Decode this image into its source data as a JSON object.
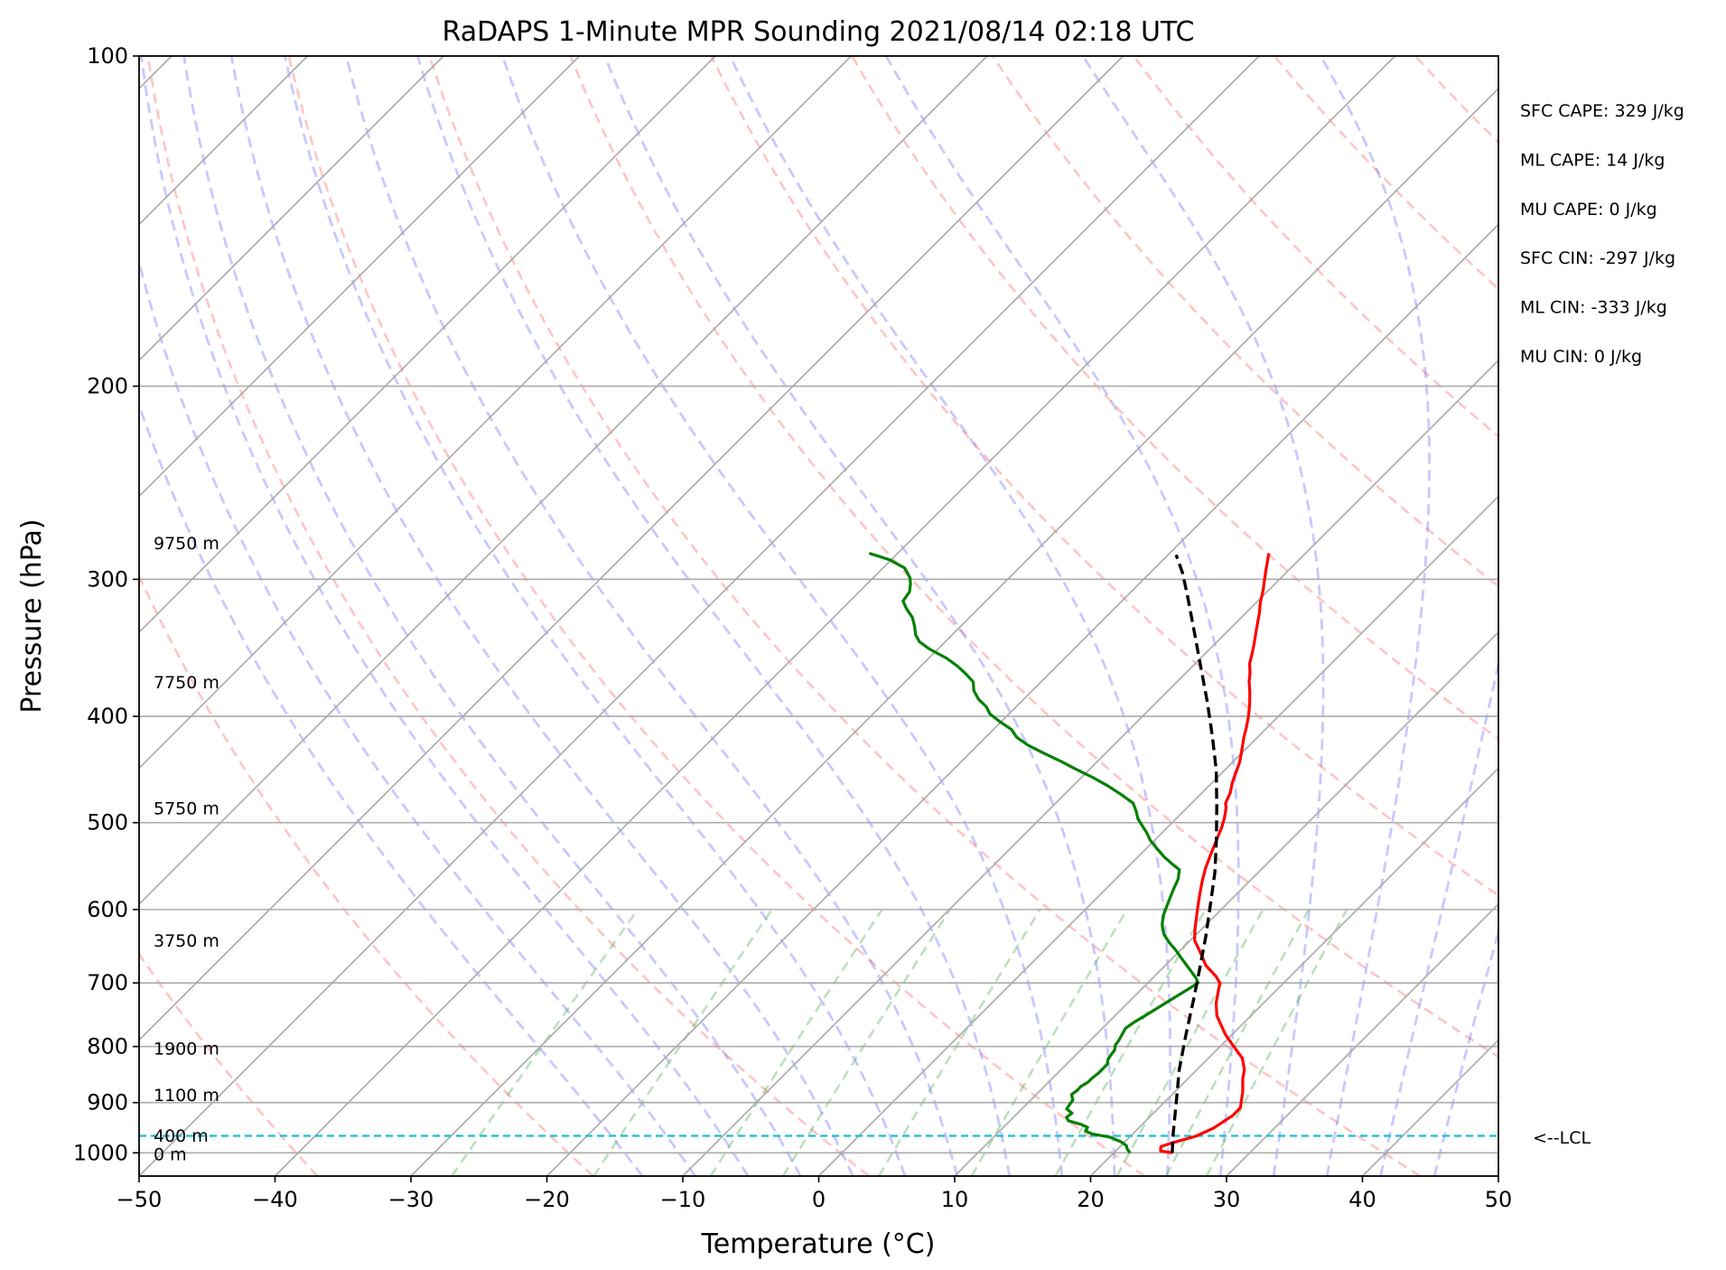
{
  "chart_data": {
    "type": "line",
    "title": "RaDAPS 1-Minute MPR Sounding 2021/08/14 02:18 UTC",
    "xlabel": "Temperature (°C)",
    "ylabel": "Pressure (hPa)",
    "xlim": [
      -50,
      50
    ],
    "ylim": [
      1050,
      100
    ],
    "y_scale": "log",
    "grid": true,
    "x_ticks": [
      "−50",
      "−40",
      "−30",
      "−20",
      "−10",
      "0",
      "10",
      "20",
      "30",
      "40",
      "50"
    ],
    "x_tick_values": [
      -50,
      -40,
      -30,
      -20,
      -10,
      0,
      10,
      20,
      30,
      40,
      50
    ],
    "y_ticks": [
      "100",
      "200",
      "300",
      "400",
      "500",
      "600",
      "700",
      "800",
      "900",
      "1000"
    ],
    "y_tick_values": [
      100,
      200,
      300,
      400,
      500,
      600,
      700,
      800,
      900,
      1000
    ],
    "height_labels": [
      {
        "text": "9750 m",
        "p": 278
      },
      {
        "text": "7750 m",
        "p": 372
      },
      {
        "text": "5750 m",
        "p": 485
      },
      {
        "text": "3750 m",
        "p": 640
      },
      {
        "text": "1900 m",
        "p": 803
      },
      {
        "text": "1100 m",
        "p": 885
      },
      {
        "text": "400 m",
        "p": 964
      },
      {
        "text": "0 m",
        "p": 1002
      }
    ],
    "lcl": {
      "label": "<--LCL",
      "p": 965
    },
    "stats": [
      "SFC CAPE: 329 J/kg",
      "ML CAPE: 14 J/kg",
      "MU CAPE: 0 J/kg",
      "SFC CIN: -297 J/kg",
      "ML CIN: -333 J/kg",
      "MU CIN: 0 J/kg"
    ],
    "series": [
      {
        "color": "#ff0000",
        "points": [
          [
            24.3,
            1000
          ],
          [
            23.3,
            996
          ],
          [
            23.0,
            987
          ],
          [
            23.5,
            980
          ],
          [
            24.8,
            966
          ],
          [
            25.5,
            950
          ],
          [
            26.0,
            925
          ],
          [
            26.0,
            910
          ],
          [
            25.0,
            880
          ],
          [
            24.0,
            855
          ],
          [
            23.5,
            840
          ],
          [
            22.5,
            820
          ],
          [
            21.0,
            800
          ],
          [
            19.5,
            780
          ],
          [
            17.5,
            750
          ],
          [
            16.5,
            730
          ],
          [
            15.3,
            700
          ],
          [
            14.5,
            690
          ],
          [
            13.0,
            675
          ],
          [
            11.5,
            655
          ],
          [
            10.3,
            640
          ],
          [
            9.5,
            625
          ],
          [
            8.5,
            605
          ],
          [
            7.5,
            585
          ],
          [
            6.5,
            565
          ],
          [
            5.8,
            550
          ],
          [
            5.2,
            535
          ],
          [
            4.8,
            525
          ],
          [
            4.4,
            515
          ],
          [
            4.0,
            505
          ],
          [
            3.5,
            495
          ],
          [
            2.9,
            485
          ],
          [
            2.5,
            480
          ],
          [
            2.1,
            470
          ],
          [
            1.5,
            460
          ],
          [
            1.0,
            450
          ],
          [
            0.5,
            440
          ],
          [
            -0.3,
            428
          ],
          [
            -1.0,
            418
          ],
          [
            -1.5,
            410
          ],
          [
            -2.2,
            400
          ],
          [
            -3.0,
            390
          ],
          [
            -3.9,
            380
          ],
          [
            -4.7,
            372
          ],
          [
            -5.3,
            365
          ],
          [
            -6.0,
            358
          ],
          [
            -6.6,
            350
          ],
          [
            -7.0,
            345
          ],
          [
            -7.6,
            338
          ],
          [
            -8.3,
            330
          ],
          [
            -9.0,
            322
          ],
          [
            -9.7,
            315
          ],
          [
            -10.4,
            307
          ],
          [
            -11.1,
            300
          ],
          [
            -11.7,
            294
          ],
          [
            -12.3,
            288
          ],
          [
            -12.7,
            284
          ]
        ]
      },
      {
        "color": "#008000",
        "points": [
          [
            21.2,
            1000
          ],
          [
            20.7,
            992
          ],
          [
            20.4,
            985
          ],
          [
            19.7,
            977
          ],
          [
            18.6,
            968
          ],
          [
            17.0,
            961
          ],
          [
            16.3,
            955
          ],
          [
            16.2,
            948
          ],
          [
            15.5,
            942
          ],
          [
            14.3,
            935
          ],
          [
            13.9,
            928
          ],
          [
            14.0,
            920
          ],
          [
            13.3,
            912
          ],
          [
            13.2,
            904
          ],
          [
            13.1,
            895
          ],
          [
            12.6,
            885
          ],
          [
            12.7,
            878
          ],
          [
            12.7,
            870
          ],
          [
            12.9,
            862
          ],
          [
            12.9,
            855
          ],
          [
            13.0,
            846
          ],
          [
            13.0,
            838
          ],
          [
            13.0,
            830
          ],
          [
            12.7,
            822
          ],
          [
            12.6,
            815
          ],
          [
            12.5,
            806
          ],
          [
            12.2,
            798
          ],
          [
            12.1,
            790
          ],
          [
            11.9,
            780
          ],
          [
            11.7,
            770
          ],
          [
            11.9,
            760
          ],
          [
            12.2,
            750
          ],
          [
            12.5,
            740
          ],
          [
            12.8,
            730
          ],
          [
            13.1,
            720
          ],
          [
            13.4,
            710
          ],
          [
            13.7,
            700
          ],
          [
            13.2,
            693
          ],
          [
            12.5,
            685
          ],
          [
            11.6,
            675
          ],
          [
            10.6,
            664
          ],
          [
            9.6,
            653
          ],
          [
            8.6,
            643
          ],
          [
            7.6,
            632
          ],
          [
            6.8,
            620
          ],
          [
            6.2,
            608
          ],
          [
            5.8,
            597
          ],
          [
            5.4,
            586
          ],
          [
            5.0,
            575
          ],
          [
            4.6,
            563
          ],
          [
            4.0,
            552
          ],
          [
            3.0,
            545
          ],
          [
            1.9,
            537
          ],
          [
            0.8,
            528
          ],
          [
            -0.3,
            519
          ],
          [
            -1.2,
            510
          ],
          [
            -2.0,
            503
          ],
          [
            -2.8,
            496
          ],
          [
            -3.5,
            488
          ],
          [
            -4.3,
            480
          ],
          [
            -5.7,
            472
          ],
          [
            -7.4,
            463
          ],
          [
            -9.1,
            455
          ],
          [
            -11.0,
            447
          ],
          [
            -12.6,
            440
          ],
          [
            -14.6,
            432
          ],
          [
            -16.3,
            425
          ],
          [
            -17.7,
            418
          ],
          [
            -18.7,
            411
          ],
          [
            -20.0,
            405
          ],
          [
            -21.4,
            398
          ],
          [
            -22.2,
            392
          ],
          [
            -23.3,
            386
          ],
          [
            -24.3,
            379
          ],
          [
            -25.0,
            372
          ],
          [
            -26.1,
            366
          ],
          [
            -27.3,
            360
          ],
          [
            -28.7,
            354
          ],
          [
            -30.7,
            347
          ],
          [
            -31.9,
            342
          ],
          [
            -32.7,
            337
          ],
          [
            -33.4,
            331
          ],
          [
            -34.2,
            325
          ],
          [
            -35.3,
            319
          ],
          [
            -36.1,
            314
          ],
          [
            -36.3,
            308
          ],
          [
            -36.8,
            303
          ],
          [
            -37.3,
            299
          ],
          [
            -38.4,
            293
          ],
          [
            -40.1,
            288
          ],
          [
            -42.1,
            284
          ]
        ]
      },
      {
        "color": "#000000",
        "dashed": true,
        "points": [
          [
            24.3,
            1000
          ],
          [
            23.1,
            965
          ],
          [
            20.9,
            900
          ],
          [
            18.7,
            840
          ],
          [
            16.6,
            780
          ],
          [
            14.6,
            725
          ],
          [
            12.8,
            680
          ],
          [
            10.9,
            636
          ],
          [
            8.9,
            595
          ],
          [
            6.8,
            555
          ],
          [
            4.5,
            518
          ],
          [
            2.0,
            482
          ],
          [
            -0.6,
            448
          ],
          [
            -3.4,
            417
          ],
          [
            -6.3,
            388
          ],
          [
            -9.3,
            361
          ],
          [
            -12.4,
            335
          ],
          [
            -15.5,
            311
          ],
          [
            -17.6,
            296
          ],
          [
            -19.4,
            285
          ]
        ]
      }
    ]
  }
}
